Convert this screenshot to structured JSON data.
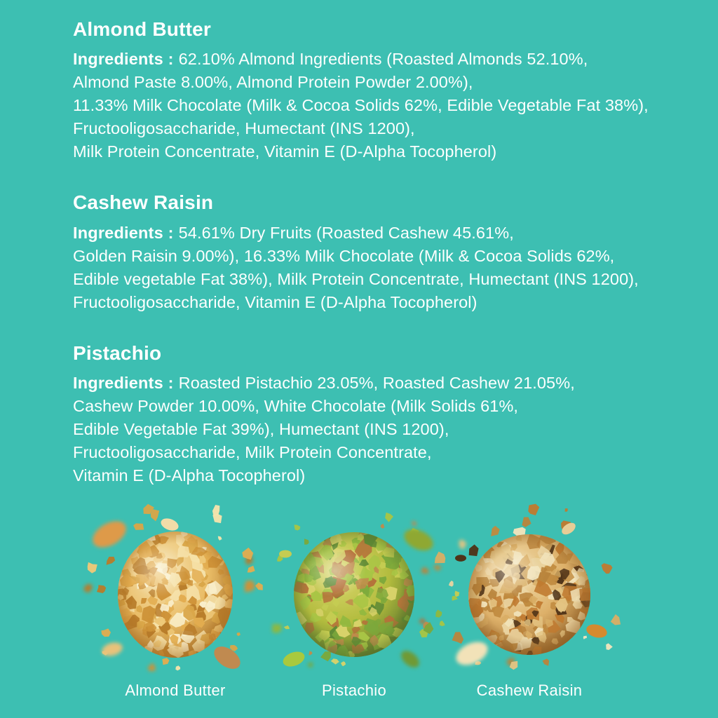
{
  "page": {
    "background_color": "#3DBFB2",
    "text_color": "#FFFFFF"
  },
  "sections": [
    {
      "title": "Almond Butter",
      "label": "Ingredients :",
      "lines": [
        "62.10% Almond Ingredients (Roasted Almonds 52.10%,",
        "Almond Paste 8.00%, Almond Protein Powder 2.00%),",
        "11.33% Milk Chocolate (Milk & Cocoa Solids 62%, Edible Vegetable Fat 38%),",
        "Fructooligosaccharide, Humectant (INS 1200),",
        "Milk Protein Concentrate, Vitamin E (D-Alpha Tocopherol)"
      ]
    },
    {
      "title": "Cashew Raisin",
      "label": "Ingredients :",
      "lines": [
        "54.61% Dry Fruits (Roasted Cashew 45.61%,",
        "Golden Raisin 9.00%), 16.33% Milk Chocolate (Milk & Cocoa Solids 62%,",
        "Edible vegetable Fat 38%), Milk Protein Concentrate, Humectant (INS 1200),",
        "Fructooligosaccharide, Vitamin E (D-Alpha Tocopherol)"
      ]
    },
    {
      "title": "Pistachio",
      "label": "Ingredients :",
      "lines": [
        "Roasted Pistachio 23.05%, Roasted Cashew 21.05%,",
        "Cashew Powder 10.00%, White Chocolate (Milk Solids 61%,",
        "Edible Vegetable Fat 39%), Humectant (INS 1200),",
        "Fructooligosaccharide, Milk Protein Concentrate,",
        "Vitamin E (D-Alpha Tocopherol)"
      ]
    }
  ],
  "products": [
    {
      "name": "Almond Butter",
      "base_color": "#E9BC66",
      "light_color": "#F7E6B4",
      "dark_color": "#A96F24",
      "chunk_colors": [
        "#F6E3AC",
        "#EEC878",
        "#E2AC4F",
        "#CE9238",
        "#B87C2A",
        "#F9EFCB",
        "#D9A648"
      ]
    },
    {
      "name": "Pistachio",
      "base_color": "#B3BC3E",
      "light_color": "#DCD970",
      "dark_color": "#55702A",
      "chunk_colors": [
        "#D8D26A",
        "#A8C545",
        "#7CA83B",
        "#5E8A35",
        "#C5CC52",
        "#B5713A",
        "#8FB83F",
        "#C08A4C"
      ]
    },
    {
      "name": "Cashew Raisin",
      "base_color": "#DDB069",
      "light_color": "#F2E0AF",
      "dark_color": "#8F5E24",
      "chunk_colors": [
        "#EAD3A0",
        "#D9AE65",
        "#C08A3E",
        "#B9843C",
        "#F2E4BC",
        "#4F3318",
        "#C07A30",
        "#E4C482"
      ]
    }
  ]
}
